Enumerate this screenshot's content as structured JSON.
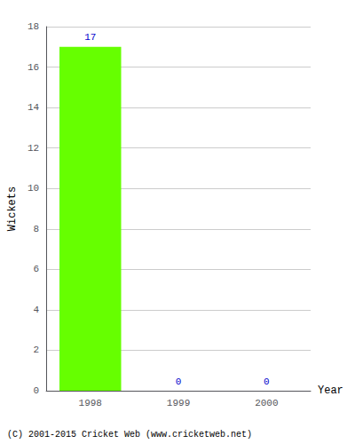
{
  "chart_data": {
    "type": "bar",
    "categories": [
      "1998",
      "1999",
      "2000"
    ],
    "values": [
      17,
      0,
      0
    ],
    "color": "#66ff00",
    "xlabel": "Year",
    "ylabel": "Wickets",
    "ylim": [
      0,
      18
    ],
    "yticks": [
      0,
      2,
      4,
      6,
      8,
      10,
      12,
      14,
      16,
      18
    ],
    "grid": true,
    "data_labels": true,
    "annotations": [
      "(C) 2001-2015 Cricket Web (www.cricketweb.net)"
    ]
  }
}
